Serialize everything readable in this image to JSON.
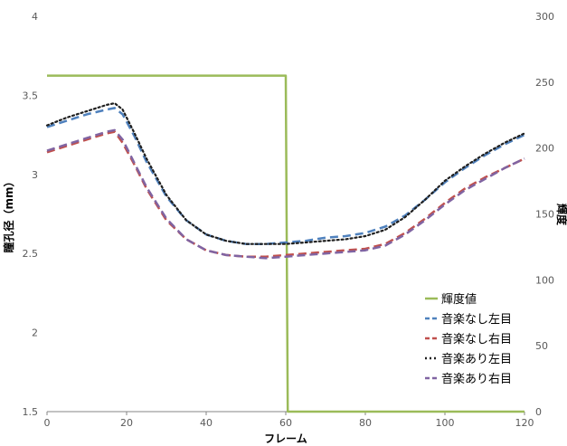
{
  "chart_data": {
    "type": "line",
    "title": "",
    "xlabel": "フレーム",
    "ylabel_left": "瞳孔径（mm）",
    "ylabel_right": "輝度",
    "xlim": [
      0,
      120
    ],
    "ylim_left": [
      1.5,
      4
    ],
    "ylim_right": [
      0,
      300
    ],
    "x_ticks": [
      "0",
      "20",
      "40",
      "60",
      "80",
      "100",
      "120"
    ],
    "y_left_ticks": [
      "1.5",
      "2",
      "2.5",
      "3",
      "3.5",
      "4"
    ],
    "y_right_ticks": [
      "0",
      "50",
      "100",
      "150",
      "200",
      "250",
      "300"
    ],
    "grid": false,
    "legend_position": "bottom-right",
    "series": [
      {
        "name": "輝度値",
        "axis": "right",
        "color": "#9BBB59",
        "style": "solid",
        "x": [
          0,
          60,
          60.5,
          120
        ],
        "values": [
          255,
          255,
          0,
          0
        ]
      },
      {
        "name": "音楽なし左目",
        "axis": "left",
        "color": "#4F81BD",
        "style": "dash",
        "x": [
          0,
          5,
          10,
          15,
          17,
          19,
          22,
          25,
          30,
          35,
          40,
          45,
          50,
          55,
          60,
          65,
          70,
          75,
          80,
          85,
          90,
          95,
          100,
          105,
          110,
          115,
          120
        ],
        "values": [
          3.3,
          3.34,
          3.38,
          3.41,
          3.42,
          3.38,
          3.24,
          3.08,
          2.86,
          2.71,
          2.62,
          2.58,
          2.56,
          2.56,
          2.57,
          2.58,
          2.6,
          2.61,
          2.63,
          2.67,
          2.74,
          2.84,
          2.95,
          3.04,
          3.12,
          3.19,
          3.25
        ]
      },
      {
        "name": "音楽なし右目",
        "axis": "left",
        "color": "#C0504D",
        "style": "dash",
        "x": [
          0,
          5,
          10,
          15,
          17,
          19,
          22,
          25,
          30,
          35,
          40,
          45,
          50,
          55,
          60,
          65,
          70,
          75,
          80,
          85,
          90,
          95,
          100,
          105,
          110,
          115,
          120
        ],
        "values": [
          3.14,
          3.18,
          3.22,
          3.26,
          3.27,
          3.2,
          3.06,
          2.91,
          2.71,
          2.59,
          2.52,
          2.49,
          2.48,
          2.48,
          2.49,
          2.5,
          2.51,
          2.52,
          2.53,
          2.56,
          2.63,
          2.72,
          2.82,
          2.91,
          2.98,
          3.04,
          3.1
        ]
      },
      {
        "name": "音楽あり左目",
        "axis": "left",
        "color": "#1F1F1F",
        "style": "dot",
        "x": [
          0,
          5,
          10,
          15,
          17,
          19,
          22,
          25,
          30,
          35,
          40,
          45,
          50,
          55,
          60,
          65,
          70,
          75,
          80,
          85,
          90,
          95,
          100,
          105,
          110,
          115,
          120
        ],
        "values": [
          3.31,
          3.36,
          3.4,
          3.44,
          3.45,
          3.41,
          3.26,
          3.1,
          2.87,
          2.71,
          2.62,
          2.58,
          2.56,
          2.56,
          2.56,
          2.57,
          2.58,
          2.59,
          2.61,
          2.65,
          2.73,
          2.84,
          2.96,
          3.05,
          3.13,
          3.2,
          3.26
        ]
      },
      {
        "name": "音楽あり右目",
        "axis": "left",
        "color": "#8064A2",
        "style": "dash",
        "x": [
          0,
          5,
          10,
          15,
          17,
          19,
          22,
          25,
          30,
          35,
          40,
          45,
          50,
          55,
          60,
          65,
          70,
          75,
          80,
          85,
          90,
          95,
          100,
          105,
          110,
          115,
          120
        ],
        "values": [
          3.15,
          3.19,
          3.23,
          3.27,
          3.28,
          3.22,
          3.07,
          2.92,
          2.72,
          2.59,
          2.52,
          2.49,
          2.48,
          2.47,
          2.48,
          2.49,
          2.5,
          2.51,
          2.52,
          2.55,
          2.62,
          2.71,
          2.81,
          2.9,
          2.97,
          3.04,
          3.1
        ]
      }
    ]
  }
}
